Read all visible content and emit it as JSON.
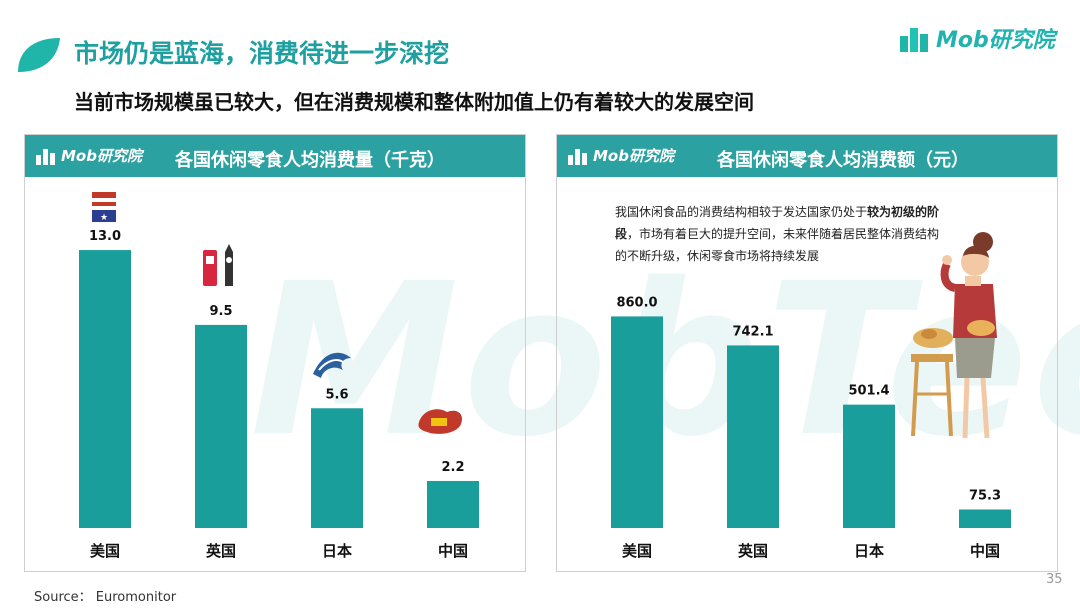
{
  "header": {
    "title": "市场仍是蓝海，消费待进一步深挖",
    "subtitle": "当前市场规模虽已较大，但在消费规模和整体附加值上仍有着较大的发展空间"
  },
  "brand": {
    "name": "Mob研究院",
    "watermark": "MobTech"
  },
  "colors": {
    "accent": "#2ba1a1",
    "bar": "#1a9e9c"
  },
  "left_panel": {
    "brand": "Mob研究院",
    "icons": [
      "us-flag-icon",
      "london-landmarks-icon",
      "great-wave-icon",
      "china-map-icon"
    ]
  },
  "right_panel": {
    "brand": "Mob研究院",
    "note_part1": "我国休闲食品的消费结构相较于发达国家仍处于",
    "note_emph": "较为初级的阶段",
    "note_part2": "，市场有着巨大的提升空间，未来伴随着居民整体消费结构的不断升级，休闲零食市场将持续发展",
    "illustration": "woman-with-snacks-illustration"
  },
  "chart_data": [
    {
      "type": "bar",
      "title": "各国休闲零食人均消费量（千克）",
      "categories": [
        "美国",
        "英国",
        "日本",
        "中国"
      ],
      "values": [
        13.0,
        9.5,
        5.6,
        2.2
      ],
      "value_labels": [
        "13.0",
        "9.5",
        "5.6",
        "2.2"
      ],
      "ylim": [
        0,
        14.5
      ],
      "grid": false,
      "legend": "none"
    },
    {
      "type": "bar",
      "title": "各国休闲零食人均消费额（元）",
      "categories": [
        "美国",
        "英国",
        "日本",
        "中国"
      ],
      "values": [
        860.0,
        742.1,
        501.4,
        75.3
      ],
      "value_labels": [
        "860.0",
        "742.1",
        "501.4",
        "75.3"
      ],
      "ylim": [
        0,
        1260
      ],
      "grid": false,
      "legend": "none"
    }
  ],
  "footer": {
    "source": "Source：  Euromonitor",
    "page": "35"
  }
}
